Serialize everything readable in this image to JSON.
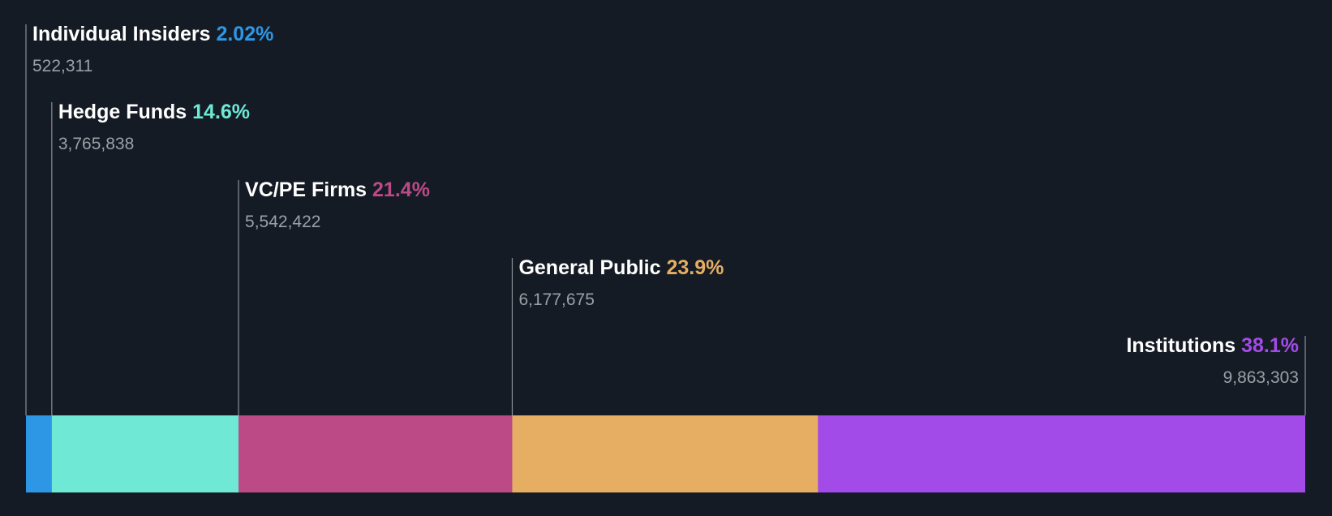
{
  "chart_data": {
    "type": "bar",
    "orientation": "horizontal-stacked",
    "categories": [
      "Individual Insiders",
      "Hedge Funds",
      "VC/PE Firms",
      "General Public",
      "Institutions"
    ],
    "series": [
      {
        "values": [
          2.02,
          14.6,
          21.4,
          23.9,
          38.1
        ],
        "value_labels": [
          "2.02%",
          "14.6%",
          "21.4%",
          "23.9%",
          "38.1%"
        ],
        "counts": [
          "522,311",
          "3,765,838",
          "5,542,422",
          "6,177,675",
          "9,863,303"
        ]
      }
    ],
    "colors": [
      "#2d97e6",
      "#6fe8d6",
      "#bb4a87",
      "#e5ae63",
      "#a34be9"
    ],
    "text_color": "#ffffff",
    "count_color": "#9aa0a6",
    "line_color": "#8a9099",
    "background": "#151b24",
    "grid": false,
    "legend": "none",
    "xlim": [
      0,
      100
    ]
  }
}
